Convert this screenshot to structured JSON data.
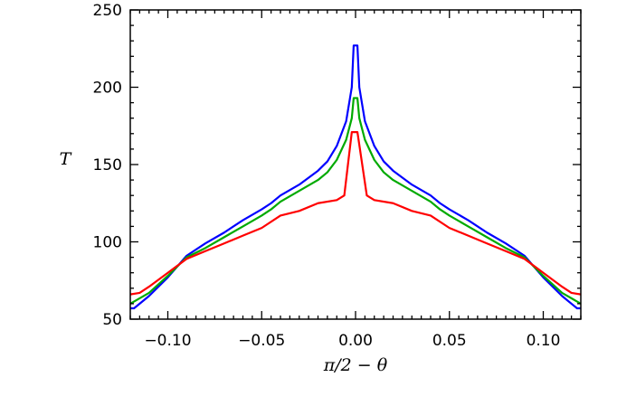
{
  "chart_data": {
    "type": "line",
    "title": "",
    "xlabel": "π/2 − θ",
    "ylabel": "T",
    "xlim": [
      -0.12,
      0.12
    ],
    "ylim": [
      50,
      250
    ],
    "xticks": [
      -0.1,
      -0.05,
      0.0,
      0.05,
      0.1
    ],
    "xtick_labels": [
      "−0.10",
      "−0.05",
      "0.00",
      "0.05",
      "0.10"
    ],
    "yticks": [
      50,
      100,
      150,
      200,
      250
    ],
    "ytick_labels": [
      "50",
      "100",
      "150",
      "200",
      "250"
    ],
    "grid": false,
    "legend": "none",
    "series": [
      {
        "color": "#0000ff",
        "points": [
          [
            -0.12,
            57
          ],
          [
            -0.118,
            57
          ],
          [
            -0.11,
            65
          ],
          [
            -0.1,
            77
          ],
          [
            -0.09,
            91
          ],
          [
            -0.08,
            99
          ],
          [
            -0.07,
            106
          ],
          [
            -0.06,
            114
          ],
          [
            -0.05,
            121
          ],
          [
            -0.045,
            125
          ],
          [
            -0.04,
            130
          ],
          [
            -0.03,
            137
          ],
          [
            -0.02,
            146
          ],
          [
            -0.015,
            152
          ],
          [
            -0.01,
            162
          ],
          [
            -0.005,
            178
          ],
          [
            -0.002,
            200
          ],
          [
            -0.001,
            227
          ],
          [
            0.001,
            227
          ],
          [
            0.002,
            200
          ],
          [
            0.005,
            178
          ],
          [
            0.01,
            162
          ],
          [
            0.015,
            152
          ],
          [
            0.02,
            146
          ],
          [
            0.03,
            137
          ],
          [
            0.04,
            130
          ],
          [
            0.045,
            125
          ],
          [
            0.05,
            121
          ],
          [
            0.06,
            114
          ],
          [
            0.07,
            106
          ],
          [
            0.08,
            99
          ],
          [
            0.09,
            91
          ],
          [
            0.1,
            77
          ],
          [
            0.11,
            65
          ],
          [
            0.118,
            57
          ],
          [
            0.12,
            57
          ]
        ]
      },
      {
        "color": "#00aa00",
        "points": [
          [
            -0.12,
            60
          ],
          [
            -0.11,
            67
          ],
          [
            -0.1,
            78
          ],
          [
            -0.09,
            90
          ],
          [
            -0.08,
            96
          ],
          [
            -0.07,
            103
          ],
          [
            -0.06,
            110
          ],
          [
            -0.05,
            117
          ],
          [
            -0.045,
            121
          ],
          [
            -0.04,
            126
          ],
          [
            -0.03,
            133
          ],
          [
            -0.02,
            140
          ],
          [
            -0.015,
            145
          ],
          [
            -0.01,
            153
          ],
          [
            -0.005,
            166
          ],
          [
            -0.002,
            180
          ],
          [
            -0.001,
            193
          ],
          [
            0.001,
            193
          ],
          [
            0.002,
            180
          ],
          [
            0.005,
            166
          ],
          [
            0.01,
            153
          ],
          [
            0.015,
            145
          ],
          [
            0.02,
            140
          ],
          [
            0.03,
            133
          ],
          [
            0.04,
            126
          ],
          [
            0.045,
            121
          ],
          [
            0.05,
            117
          ],
          [
            0.06,
            110
          ],
          [
            0.07,
            103
          ],
          [
            0.08,
            96
          ],
          [
            0.09,
            90
          ],
          [
            0.1,
            78
          ],
          [
            0.11,
            67
          ],
          [
            0.12,
            60
          ]
        ]
      },
      {
        "color": "#ff0000",
        "points": [
          [
            -0.12,
            66
          ],
          [
            -0.115,
            67
          ],
          [
            -0.11,
            71
          ],
          [
            -0.1,
            80
          ],
          [
            -0.09,
            89
          ],
          [
            -0.08,
            94
          ],
          [
            -0.07,
            99
          ],
          [
            -0.06,
            104
          ],
          [
            -0.05,
            109
          ],
          [
            -0.04,
            117
          ],
          [
            -0.03,
            120
          ],
          [
            -0.02,
            125
          ],
          [
            -0.01,
            127
          ],
          [
            -0.006,
            130
          ],
          [
            -0.002,
            171
          ],
          [
            0.001,
            171
          ],
          [
            0.006,
            130
          ],
          [
            0.01,
            127
          ],
          [
            0.02,
            125
          ],
          [
            0.03,
            120
          ],
          [
            0.04,
            117
          ],
          [
            0.05,
            109
          ],
          [
            0.06,
            104
          ],
          [
            0.07,
            99
          ],
          [
            0.08,
            94
          ],
          [
            0.09,
            89
          ],
          [
            0.1,
            80
          ],
          [
            0.11,
            71
          ],
          [
            0.115,
            67
          ],
          [
            0.12,
            66
          ]
        ]
      }
    ]
  }
}
